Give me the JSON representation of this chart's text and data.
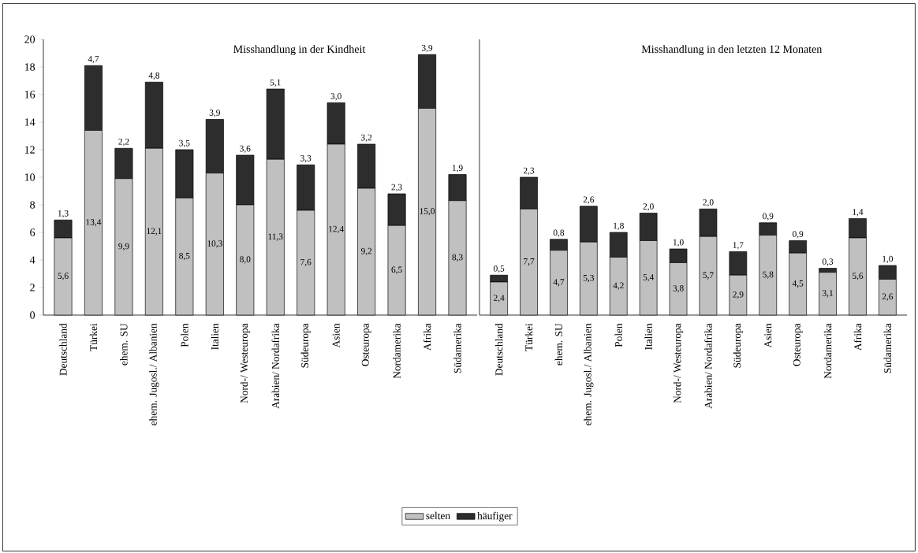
{
  "chart_data": [
    {
      "type": "bar",
      "stacked": true,
      "title": "Misshandlung in der Kindheit",
      "legend": "bottom",
      "ylim": [
        0,
        20
      ],
      "yticks": [
        0,
        2,
        4,
        6,
        8,
        10,
        12,
        14,
        16,
        18,
        20
      ],
      "categories": [
        "Deutschland",
        "Türkei",
        "ehem. SU",
        "ehem. Jugosl./ Albanien",
        "Polen",
        "Italien",
        "Nord-/ Westeuropa",
        "Arabien/ Nordafrika",
        "Südeuropa",
        "Asien",
        "Osteuropa",
        "Nordamerika",
        "Afrika",
        "Südamerika"
      ],
      "series": [
        {
          "name": "selten",
          "color": "#c0c0c0",
          "values": [
            5.6,
            13.4,
            9.9,
            12.1,
            8.5,
            10.3,
            8.0,
            11.3,
            7.6,
            12.4,
            9.2,
            6.5,
            15.0,
            8.3
          ],
          "value_labels": [
            "5,6",
            "13,4",
            "9,9",
            "12,1",
            "8,5",
            "10,3",
            "8,0",
            "11,3",
            "7,6",
            "12,4",
            "9,2",
            "6,5",
            "15,0",
            "8,3"
          ]
        },
        {
          "name": "häufiger",
          "color": "#2d2d2d",
          "values": [
            1.3,
            4.7,
            2.2,
            4.8,
            3.5,
            3.9,
            3.6,
            5.1,
            3.3,
            3.0,
            3.2,
            2.3,
            3.9,
            1.9
          ],
          "value_labels": [
            "1,3",
            "4,7",
            "2,2",
            "4,8",
            "3,5",
            "3,9",
            "3,6",
            "5,1",
            "3,3",
            "3,0",
            "3,2",
            "2,3",
            "3,9",
            "1,9"
          ]
        }
      ]
    },
    {
      "type": "bar",
      "stacked": true,
      "title": "Misshandlung in den letzten 12 Monaten",
      "tick_labels": "x",
      "ylim": [
        0,
        20
      ],
      "categories": [
        "Deutschland",
        "Türkei",
        "ehem. SU",
        "ehem. Jugosl./ Albanien",
        "Polen",
        "Italien",
        "Nord-/ Westeuropa",
        "Arabien/ Nordafrika",
        "Südeuropa",
        "Asien",
        "Osteuropa",
        "Nordamerika",
        "Afrika",
        "Südamerika"
      ],
      "series": [
        {
          "color": "#c0c0c0",
          "values": [
            2.4,
            7.7,
            4.7,
            5.3,
            4.2,
            5.4,
            3.8,
            5.7,
            2.9,
            5.8,
            4.5,
            3.1,
            5.6,
            2.6
          ],
          "value_labels": [
            "2,4",
            "7,7",
            "4,7",
            "5,3",
            "4,2",
            "5,4",
            "3,8",
            "5,7",
            "2,9",
            "5,8",
            "4,5",
            "3,1",
            "5,6",
            "2,6"
          ]
        },
        {
          "color": "#2d2d2d",
          "values": [
            0.5,
            2.3,
            0.8,
            2.6,
            1.8,
            2.0,
            1.0,
            2.0,
            1.7,
            0.9,
            0.9,
            0.3,
            1.4,
            1.0
          ],
          "value_labels": [
            "0,5",
            "2,3",
            "0,8",
            "2,6",
            "1,8",
            "2,0",
            "1,0",
            "2,0",
            "1,7",
            "0,9",
            "0,9",
            "0,3",
            "1,4",
            "1,0"
          ]
        }
      ]
    }
  ]
}
